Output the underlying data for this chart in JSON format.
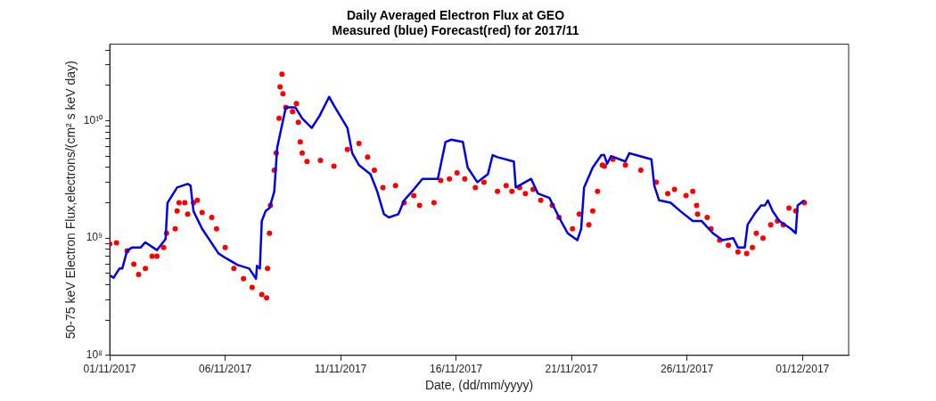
{
  "chart_data": {
    "type": "line",
    "title": "Daily Averaged Electron Flux at GEO",
    "subtitle": "Measured (blue) Forecast(red) for 2017/11",
    "xlabel": "Date, (dd/mm/yyyy)",
    "ylabel": "50-75 keV Electron Flux,electrons/(cm² s keV day)",
    "log": "y",
    "grid": false,
    "legend": false,
    "xlim": [
      "2017-11-01",
      "2017-12-03"
    ],
    "xticks": [
      {
        "value": "2017-11-01",
        "label": "01/11/2017"
      },
      {
        "value": "2017-11-06",
        "label": "06/11/2017"
      },
      {
        "value": "2017-11-11",
        "label": "11/11/2017"
      },
      {
        "value": "2017-11-16",
        "label": "16/11/2017"
      },
      {
        "value": "2017-11-21",
        "label": "21/11/2017"
      },
      {
        "value": "2017-11-26",
        "label": "26/11/2017"
      },
      {
        "value": "2017-12-01",
        "label": "01/12/2017"
      }
    ],
    "ylim": [
      100000000,
      45000000000
    ],
    "yticks": [
      {
        "value": 100000000,
        "label": "10⁸"
      },
      {
        "value": 200000000,
        "label": null
      },
      {
        "value": 300000000,
        "label": null
      },
      {
        "value": 400000000,
        "label": null
      },
      {
        "value": 500000000,
        "label": null
      },
      {
        "value": 600000000,
        "label": null
      },
      {
        "value": 700000000,
        "label": null
      },
      {
        "value": 800000000,
        "label": null
      },
      {
        "value": 900000000,
        "label": null
      },
      {
        "value": 1000000000,
        "label": "10⁹"
      },
      {
        "value": 2000000000,
        "label": null
      },
      {
        "value": 3000000000,
        "label": null
      },
      {
        "value": 4000000000,
        "label": null
      },
      {
        "value": 5000000000,
        "label": null
      },
      {
        "value": 6000000000,
        "label": null
      },
      {
        "value": 7000000000,
        "label": null
      },
      {
        "value": 8000000000,
        "label": null
      },
      {
        "value": 9000000000,
        "label": null
      },
      {
        "value": 10000000000,
        "label": "10¹⁰"
      },
      {
        "value": 20000000000,
        "label": null
      },
      {
        "value": 30000000000,
        "label": null
      },
      {
        "value": 40000000000,
        "label": null
      }
    ],
    "series": [
      {
        "marker": "none",
        "color": "#0000ee",
        "x": [
          "2017-11-01T00:00",
          "2017-11-01T04:00",
          "2017-11-01T10:00",
          "2017-11-01T13:00",
          "2017-11-01T18:00",
          "2017-11-01T23:00",
          "2017-11-02T08:00",
          "2017-11-02T13:00",
          "2017-11-03T01:00",
          "2017-11-03T10:00",
          "2017-11-03T12:00",
          "2017-11-03T22:00",
          "2017-11-04T09:00",
          "2017-11-04T12:00",
          "2017-11-04T15:00",
          "2017-11-05T00:00",
          "2017-11-05T17:00",
          "2017-11-06T00:00",
          "2017-11-06T13:00",
          "2017-11-07T01:00",
          "2017-11-07T08:00",
          "2017-11-07T09:00",
          "2017-11-07T12:00",
          "2017-11-07T14:00",
          "2017-11-07T18:00",
          "2017-11-07T22:00",
          "2017-11-08T03:00",
          "2017-11-08T06:00",
          "2017-11-08T12:00",
          "2017-11-08T15:00",
          "2017-11-09T01:00",
          "2017-11-09T08:00",
          "2017-11-09T18:00",
          "2017-11-10T02:00",
          "2017-11-10T12:00",
          "2017-11-10T17:00",
          "2017-11-11T07:00",
          "2017-11-11T12:00",
          "2017-11-11T19:00",
          "2017-11-12T07:00",
          "2017-11-12T14:00",
          "2017-11-12T21:00",
          "2017-11-13T02:00",
          "2017-11-13T12:00",
          "2017-11-13T18:00",
          "2017-11-14T04:00",
          "2017-11-14T13:00",
          "2017-11-15T05:00",
          "2017-11-15T13:00",
          "2017-11-15T19:00",
          "2017-11-16T07:00",
          "2017-11-16T12:00",
          "2017-11-16T22:00",
          "2017-11-17T09:00",
          "2017-11-17T14:00",
          "2017-11-17T19:00",
          "2017-11-18T12:00",
          "2017-11-18T14:00",
          "2017-11-19T06:00",
          "2017-11-19T13:00",
          "2017-11-20T01:00",
          "2017-11-20T11:00",
          "2017-11-20T20:00",
          "2017-11-21T06:00",
          "2017-11-21T10:00",
          "2017-11-21T13:00",
          "2017-11-21T22:00",
          "2017-11-22T07:00",
          "2017-11-22T10:00",
          "2017-11-22T13:00",
          "2017-11-22T17:00",
          "2017-11-23T08:00",
          "2017-11-23T12:00",
          "2017-11-23T19:00",
          "2017-11-24T11:00",
          "2017-11-24T14:00",
          "2017-11-24T19:00",
          "2017-11-25T07:00",
          "2017-11-25T17:00",
          "2017-11-26T06:00",
          "2017-11-26T15:00",
          "2017-11-27T03:00",
          "2017-11-27T13:00",
          "2017-11-28T00:00",
          "2017-11-28T05:00",
          "2017-11-28T12:00",
          "2017-11-28T15:00",
          "2017-11-28T22:00",
          "2017-11-29T05:00",
          "2017-11-29T09:00",
          "2017-11-29T12:00",
          "2017-11-29T17:00",
          "2017-11-30T00:00",
          "2017-11-30T12:00",
          "2017-11-30T17:00",
          "2017-11-30T19:00",
          "2017-12-01T02:00"
        ],
        "values": [
          480000000,
          460000000,
          550000000,
          550000000,
          780000000,
          830000000,
          830000000,
          920000000,
          790000000,
          980000000,
          2000000000,
          2700000000,
          2900000000,
          2800000000,
          1700000000,
          1200000000,
          740000000,
          680000000,
          590000000,
          550000000,
          450000000,
          580000000,
          550000000,
          1400000000,
          1700000000,
          1800000000,
          2500000000,
          5900000000,
          10000000000,
          13000000000,
          13000000000,
          10500000000,
          8700000000,
          11000000000,
          16000000000,
          13500000000,
          8700000000,
          5300000000,
          4200000000,
          3500000000,
          2500000000,
          1600000000,
          1500000000,
          1600000000,
          2100000000,
          2600000000,
          3200000000,
          3200000000,
          6600000000,
          6900000000,
          6600000000,
          4000000000,
          3000000000,
          3500000000,
          5100000000,
          4900000000,
          4500000000,
          2700000000,
          3200000000,
          2400000000,
          2200000000,
          1500000000,
          1100000000,
          960000000,
          1200000000,
          2700000000,
          4000000000,
          5100000000,
          5100000000,
          4300000000,
          5000000000,
          4500000000,
          5300000000,
          5100000000,
          4700000000,
          2800000000,
          2100000000,
          2000000000,
          1700000000,
          1400000000,
          1400000000,
          1100000000,
          960000000,
          1000000000,
          830000000,
          830000000,
          1300000000,
          1600000000,
          1900000000,
          1900000000,
          2100000000,
          1700000000,
          1400000000,
          1200000000,
          1100000000,
          1900000000,
          2100000000
        ]
      },
      {
        "type": "scatter",
        "marker": "circle",
        "color": "#ff0000",
        "x": [
          "2017-11-01T00:00",
          "2017-11-01T07:00",
          "2017-11-01T18:00",
          "2017-11-02T01:00",
          "2017-11-02T06:00",
          "2017-11-02T13:00",
          "2017-11-02T20:00",
          "2017-11-03T01:00",
          "2017-11-03T08:00",
          "2017-11-03T11:00",
          "2017-11-03T20:00",
          "2017-11-03T22:00",
          "2017-11-04T00:00",
          "2017-11-04T06:00",
          "2017-11-04T09:00",
          "2017-11-04T15:00",
          "2017-11-04T19:00",
          "2017-11-05T00:00",
          "2017-11-05T10:00",
          "2017-11-05T15:00",
          "2017-11-06T00:00",
          "2017-11-06T09:00",
          "2017-11-06T19:00",
          "2017-11-07T04:00",
          "2017-11-07T14:00",
          "2017-11-07T19:00",
          "2017-11-07T20:00",
          "2017-11-07T22:00",
          "2017-11-07T23:00",
          "2017-11-08T03:00",
          "2017-11-08T05:00",
          "2017-11-08T08:00",
          "2017-11-08T09:00",
          "2017-11-08T11:00",
          "2017-11-08T12:00",
          "2017-11-08T15:00",
          "2017-11-08T22:00",
          "2017-11-09T02:00",
          "2017-11-09T04:00",
          "2017-11-09T06:00",
          "2017-11-09T08:00",
          "2017-11-09T13:00",
          "2017-11-10T03:00",
          "2017-11-10T17:00",
          "2017-11-11T07:00",
          "2017-11-11T19:00",
          "2017-11-12T04:00",
          "2017-11-12T11:00",
          "2017-11-12T20:00",
          "2017-11-13T09:00",
          "2017-11-13T18:00",
          "2017-11-14T04:00",
          "2017-11-14T10:00",
          "2017-11-15T01:00",
          "2017-11-15T08:00",
          "2017-11-15T17:00",
          "2017-11-16T01:00",
          "2017-11-16T09:00",
          "2017-11-16T20:00",
          "2017-11-17T05:00",
          "2017-11-17T19:00",
          "2017-11-18T04:00",
          "2017-11-18T10:00",
          "2017-11-18T18:00",
          "2017-11-19T00:00",
          "2017-11-19T08:00",
          "2017-11-19T16:00",
          "2017-11-20T04:00",
          "2017-11-20T11:00",
          "2017-11-21T01:00",
          "2017-11-21T08:00",
          "2017-11-21T18:00",
          "2017-11-21T22:00",
          "2017-11-22T03:00",
          "2017-11-22T08:00",
          "2017-11-22T10:00",
          "2017-11-22T19:00",
          "2017-11-23T08:00",
          "2017-11-24T00:00",
          "2017-11-24T16:00",
          "2017-11-25T04:00",
          "2017-11-25T11:00",
          "2017-11-25T23:00",
          "2017-11-26T06:00",
          "2017-11-26T10:00",
          "2017-11-26T11:00",
          "2017-11-26T21:00",
          "2017-11-27T01:00",
          "2017-11-27T10:00",
          "2017-11-27T19:00",
          "2017-11-28T05:00",
          "2017-11-28T14:00",
          "2017-11-28T20:00",
          "2017-11-29T00:00",
          "2017-11-29T07:00",
          "2017-11-29T15:00",
          "2017-11-29T22:00",
          "2017-11-30T04:00",
          "2017-11-30T10:00",
          "2017-11-30T17:00",
          "2017-12-01T02:00"
        ],
        "values": [
          890000000,
          910000000,
          780000000,
          600000000,
          490000000,
          550000000,
          700000000,
          700000000,
          830000000,
          1100000000,
          1200000000,
          1700000000,
          2000000000,
          2000000000,
          1600000000,
          2000000000,
          2100000000,
          1650000000,
          1500000000,
          1200000000,
          830000000,
          550000000,
          450000000,
          380000000,
          330000000,
          310000000,
          550000000,
          1100000000,
          1900000000,
          3800000000,
          5300000000,
          10500000000,
          19500000000,
          25000000000,
          17000000000,
          13000000000,
          12000000000,
          14000000000,
          9700000000,
          6600000000,
          5300000000,
          4500000000,
          4600000000,
          4100000000,
          5700000000,
          6400000000,
          4900000000,
          3800000000,
          2700000000,
          2800000000,
          2000000000,
          2300000000,
          1900000000,
          2000000000,
          3100000000,
          3200000000,
          3600000000,
          3200000000,
          2700000000,
          3000000000,
          2500000000,
          2800000000,
          2500000000,
          2700000000,
          2400000000,
          2600000000,
          2100000000,
          1900000000,
          1500000000,
          1200000000,
          1600000000,
          1300000000,
          1700000000,
          2500000000,
          4200000000,
          4100000000,
          4700000000,
          4200000000,
          3800000000,
          3000000000,
          2400000000,
          2600000000,
          2300000000,
          2500000000,
          1900000000,
          1600000000,
          1500000000,
          1200000000,
          960000000,
          870000000,
          760000000,
          740000000,
          830000000,
          1100000000,
          1000000000,
          1300000000,
          1400000000,
          1300000000,
          1800000000,
          1700000000,
          2000000000
        ]
      }
    ]
  }
}
